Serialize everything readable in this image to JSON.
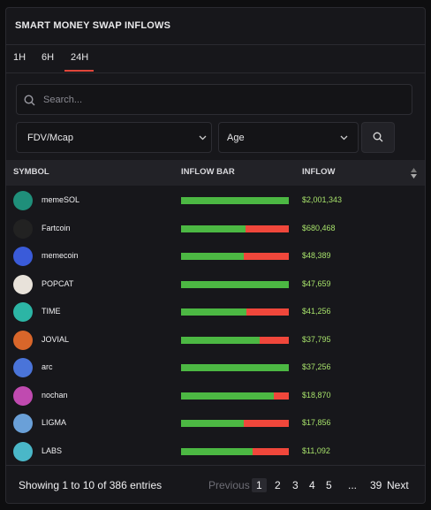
{
  "header": {
    "title": "SMART MONEY SWAP INFLOWS"
  },
  "tabs": [
    "1H",
    "6H",
    "24H"
  ],
  "active_tab": 2,
  "search": {
    "placeholder": "Search..."
  },
  "filters": [
    "FDV/Mcap",
    "Age"
  ],
  "table": {
    "columns": [
      "SYMBOL",
      "INFLOW BAR",
      "INFLOW"
    ],
    "rows": [
      {
        "symbol": "memeSOL",
        "buy_share": 1.0,
        "inflow": "$2,001,343"
      },
      {
        "symbol": "Fartcoin",
        "buy_share": 0.6,
        "inflow": "$680,468"
      },
      {
        "symbol": "memecoin",
        "buy_share": 0.58,
        "inflow": "$48,389"
      },
      {
        "symbol": "POPCAT",
        "buy_share": 1.0,
        "inflow": "$47,659"
      },
      {
        "symbol": "TIME",
        "buy_share": 0.61,
        "inflow": "$41,256"
      },
      {
        "symbol": "JOVIAL",
        "buy_share": 0.73,
        "inflow": "$37,795"
      },
      {
        "symbol": "arc",
        "buy_share": 1.0,
        "inflow": "$37,256"
      },
      {
        "symbol": "nochan",
        "buy_share": 0.86,
        "inflow": "$18,870"
      },
      {
        "symbol": "LIGMA",
        "buy_share": 0.58,
        "inflow": "$17,856"
      },
      {
        "symbol": "LABS",
        "buy_share": 0.66,
        "inflow": "$11,092"
      }
    ]
  },
  "footer": {
    "summary": "Showing 1 to 10 of 386 entries",
    "pagination": [
      "Previous",
      "1",
      "2",
      "3",
      "4",
      "5",
      "...",
      "39",
      "Next"
    ],
    "current_page": 1
  }
}
